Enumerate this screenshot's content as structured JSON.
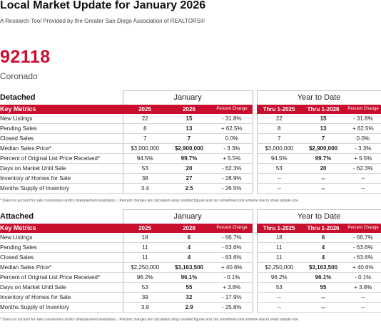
{
  "header": {
    "title": "Local Market Update for January 2026",
    "subtitle": "A Research Tool Provided by the Greater San Diego Association of REALTORS®",
    "zip": "92118",
    "city": "Coronado"
  },
  "columns": {
    "key_metrics": "Key Metrics",
    "month_group": "January",
    "ytd_group": "Year to Date",
    "y1": "2025",
    "y2": "2026",
    "pct": "Percent Change",
    "ytd1": "Thru 1-2025",
    "ytd2": "Thru 1-2026"
  },
  "footnote": "* Does not account for sale concessions and/or downpayment assistance.  |  Percent changes are calculated using rounded figures and can sometimes look extreme due to small sample size.",
  "detached": {
    "name": "Detached",
    "rows": [
      {
        "label": "New Listings",
        "m1": "22",
        "m2": "15",
        "mp": "- 31.8%",
        "y1": "22",
        "y2": "15",
        "yp": "- 31.8%"
      },
      {
        "label": "Pending Sales",
        "m1": "8",
        "m2": "13",
        "mp": "+ 62.5%",
        "y1": "8",
        "y2": "13",
        "yp": "+ 62.5%"
      },
      {
        "label": "Closed Sales",
        "m1": "7",
        "m2": "7",
        "mp": "0.0%",
        "y1": "7",
        "y2": "7",
        "yp": "0.0%"
      },
      {
        "label": "Median Sales Price*",
        "m1": "$3,000,000",
        "m2": "$2,900,000",
        "mp": "- 3.3%",
        "y1": "$3,000,000",
        "y2": "$2,900,000",
        "yp": "- 3.3%"
      },
      {
        "label": "Percent of Original List Price Received*",
        "m1": "94.5%",
        "m2": "99.7%",
        "mp": "+ 5.5%",
        "y1": "94.5%",
        "y2": "99.7%",
        "yp": "+ 5.5%"
      },
      {
        "label": "Days on Market Until Sale",
        "m1": "53",
        "m2": "20",
        "mp": "- 62.3%",
        "y1": "53",
        "y2": "20",
        "yp": "- 62.3%"
      },
      {
        "label": "Inventory of Homes for Sale",
        "m1": "38",
        "m2": "27",
        "mp": "- 28.9%",
        "y1": "--",
        "y2": "--",
        "yp": "--"
      },
      {
        "label": "Months Supply of Inventory",
        "m1": "3.4",
        "m2": "2.5",
        "mp": "- 26.5%",
        "y1": "--",
        "y2": "--",
        "yp": "--"
      }
    ]
  },
  "attached": {
    "name": "Attached",
    "rows": [
      {
        "label": "New Listings",
        "m1": "18",
        "m2": "6",
        "mp": "- 66.7%",
        "y1": "18",
        "y2": "6",
        "yp": "- 66.7%"
      },
      {
        "label": "Pending Sales",
        "m1": "11",
        "m2": "4",
        "mp": "- 63.6%",
        "y1": "11",
        "y2": "4",
        "yp": "- 63.6%"
      },
      {
        "label": "Closed Sales",
        "m1": "11",
        "m2": "4",
        "mp": "- 63.6%",
        "y1": "11",
        "y2": "4",
        "yp": "- 63.6%"
      },
      {
        "label": "Median Sales Price*",
        "m1": "$2,250,000",
        "m2": "$3,163,500",
        "mp": "+ 40.6%",
        "y1": "$2,250,000",
        "y2": "$3,163,500",
        "yp": "+ 40.6%"
      },
      {
        "label": "Percent of Original List Price Received*",
        "m1": "96.2%",
        "m2": "96.1%",
        "mp": "- 0.1%",
        "y1": "96.2%",
        "y2": "96.1%",
        "yp": "- 0.1%"
      },
      {
        "label": "Days on Market Until Sale",
        "m1": "53",
        "m2": "55",
        "mp": "+ 3.8%",
        "y1": "53",
        "y2": "55",
        "yp": "+ 3.8%"
      },
      {
        "label": "Inventory of Homes for Sale",
        "m1": "39",
        "m2": "32",
        "mp": "- 17.9%",
        "y1": "--",
        "y2": "--",
        "yp": "--"
      },
      {
        "label": "Months Supply of Inventory",
        "m1": "3.9",
        "m2": "2.9",
        "mp": "- 25.6%",
        "y1": "--",
        "y2": "--",
        "yp": "--"
      }
    ]
  }
}
